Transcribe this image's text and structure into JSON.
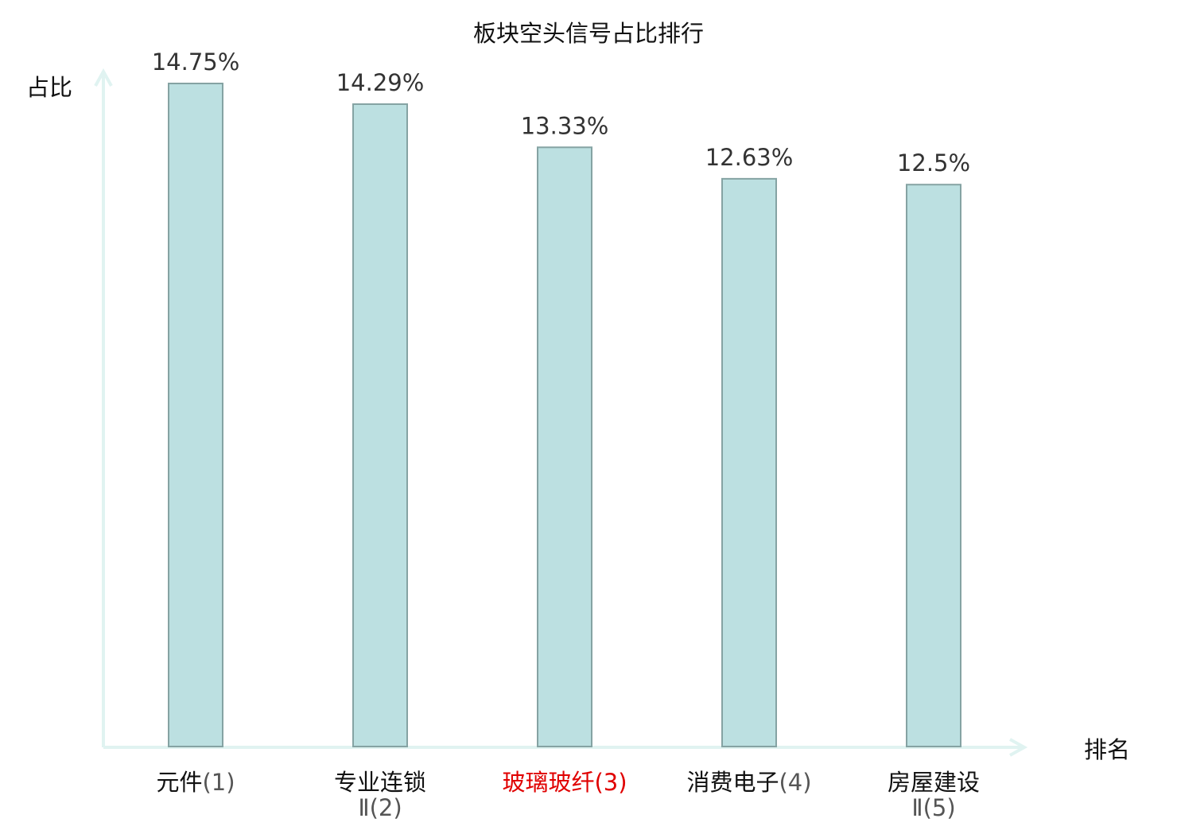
{
  "chart_data": {
    "type": "bar",
    "title": "板块空头信号占比排行",
    "ylabel": "占比",
    "xlabel": "排名",
    "categories": [
      {
        "name": "元件",
        "rank": "(1)",
        "line2": "",
        "highlight": false
      },
      {
        "name": "专业连锁",
        "rank": "(2)",
        "line2": "Ⅱ",
        "highlight": false
      },
      {
        "name": "玻璃玻纤",
        "rank": "(3)",
        "line2": "",
        "highlight": true
      },
      {
        "name": "消费电子",
        "rank": "(4)",
        "line2": "",
        "highlight": false
      },
      {
        "name": "房屋建设",
        "rank": "(5)",
        "line2": "Ⅱ",
        "highlight": false
      }
    ],
    "values": [
      14.75,
      14.29,
      13.33,
      12.63,
      12.5
    ],
    "value_labels": [
      "14.75%",
      "14.29%",
      "13.33%",
      "12.63%",
      "12.5%"
    ],
    "ylim": [
      0,
      14.75
    ],
    "grid": false,
    "colors": {
      "bar_fill": "#bce0e1",
      "bar_stroke": "#85a3a3",
      "axis": "#e0f3f1",
      "text": "#333333",
      "highlight_text": "#e00000"
    }
  }
}
